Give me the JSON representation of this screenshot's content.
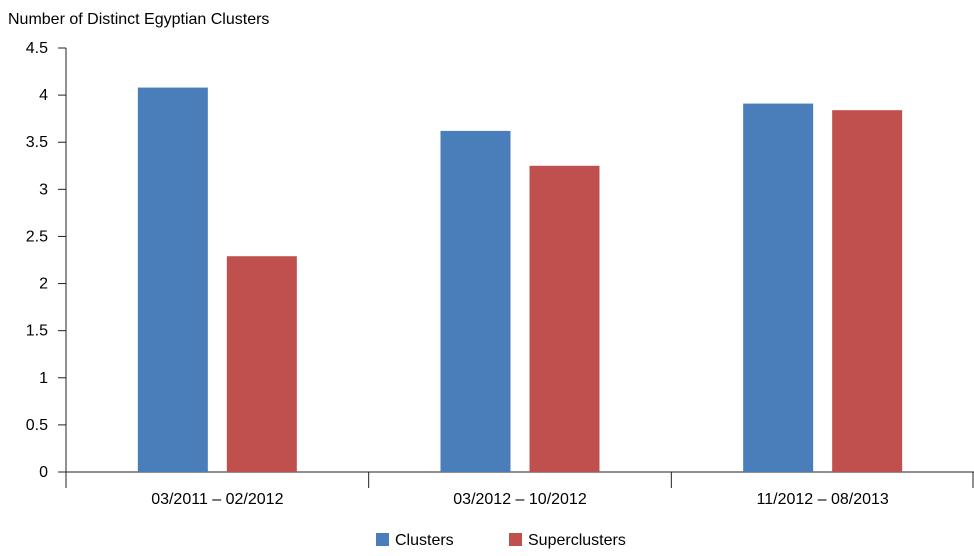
{
  "chart_data": {
    "type": "bar",
    "title": "",
    "ylabel": "Number of Distinct Egyptian Clusters",
    "xlabel": "",
    "ylim": [
      0,
      4.5
    ],
    "yticks": [
      "0",
      "0.5",
      "1",
      "1.5",
      "2",
      "2.5",
      "3",
      "3.5",
      "4",
      "4.5"
    ],
    "categories": [
      "03/2011 – 02/2012",
      "03/2012 – 10/2012",
      "11/2012 – 08/2013"
    ],
    "series": [
      {
        "name": "Clusters",
        "color": "#4a7ebb",
        "values": [
          4.08,
          3.62,
          3.91
        ]
      },
      {
        "name": "Superclusters",
        "color": "#c0504d",
        "values": [
          2.29,
          3.25,
          3.84
        ]
      }
    ],
    "grid": false,
    "legend": "bottom-center"
  }
}
